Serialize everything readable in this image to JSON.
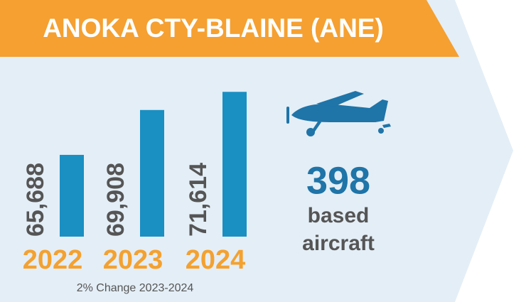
{
  "chart_data": {
    "type": "bar",
    "title": "ANOKA CTY-BLAINE (ANE)",
    "categories": [
      "2022",
      "2023",
      "2024"
    ],
    "values": [
      65688,
      69908,
      71614
    ],
    "value_labels": [
      "65,688",
      "69,908",
      "71,614"
    ],
    "color": "#1a8fc2",
    "ylim": [
      58000,
      72500
    ],
    "annotation": "2% Change 2023-2024",
    "based_aircraft": {
      "value": 398,
      "label_lines": [
        "based",
        "aircraft"
      ]
    }
  }
}
